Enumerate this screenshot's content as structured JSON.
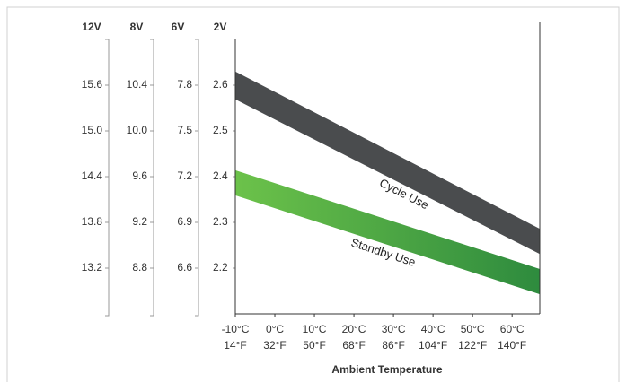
{
  "chart_data": {
    "type": "band",
    "y_label": "2V",
    "ylim": [
      2.1,
      2.7
    ],
    "yticks": [
      2.2,
      2.3,
      2.4,
      2.5,
      2.6
    ],
    "extra_axes": [
      {
        "label": "12V",
        "ylim": [
          12.6,
          16.2
        ],
        "yticks": [
          13.2,
          13.8,
          14.4,
          {
            "value": 15,
            "label": "15.0"
          },
          15.6
        ]
      },
      {
        "label": "8V",
        "ylim": [
          8.4,
          10.8
        ],
        "yticks": [
          8.8,
          9.2,
          9.6,
          {
            "value": 10,
            "label": "10.0"
          },
          10.4
        ]
      },
      {
        "label": "6V",
        "ylim": [
          6.3,
          8.1
        ],
        "yticks": [
          6.6,
          6.9,
          7.2,
          7.5,
          7.8
        ]
      }
    ],
    "xlim": [
      -10,
      67
    ],
    "xticks": [
      {
        "value": -10,
        "label": "-10°C"
      },
      {
        "value": 0,
        "label": "0°C"
      },
      {
        "value": 10,
        "label": "10°C"
      },
      {
        "value": 20,
        "label": "20°C"
      },
      {
        "value": 30,
        "label": "30°C"
      },
      {
        "value": 40,
        "label": "40°C"
      },
      {
        "value": 50,
        "label": "50°C"
      },
      {
        "value": 60,
        "label": "60°C"
      }
    ],
    "xticks_fahrenheit": [
      "14°F",
      "32°F",
      "50°F",
      "68°F",
      "86°F",
      "104°F",
      "122°F",
      "140°F"
    ],
    "x_label": "Ambient Temperature",
    "series": [
      {
        "name": "Cycle Use",
        "colors": [
          "#4a4c4e",
          "#4a4c4e"
        ],
        "x": [
          -10,
          67
        ],
        "high": [
          2.63,
          2.286
        ],
        "low": [
          2.569,
          2.231
        ]
      },
      {
        "name": "Standby Use",
        "colors": [
          "#6cc24a",
          "#2e8b3e"
        ],
        "x": [
          -10,
          67
        ],
        "high": [
          2.414,
          2.198
        ],
        "low": [
          2.359,
          2.143
        ]
      }
    ]
  }
}
